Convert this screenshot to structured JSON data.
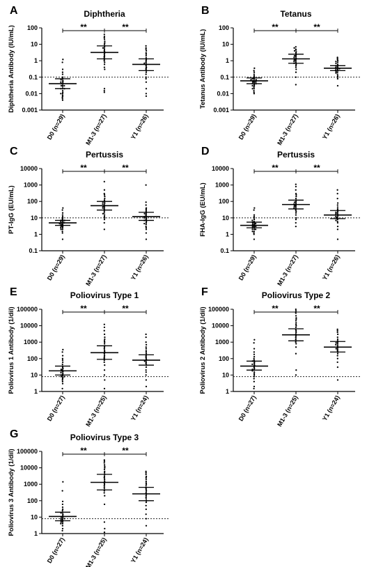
{
  "chart_data": [
    {
      "type": "scatter",
      "letter": "A",
      "title": "Diphtheria",
      "ylabel": "Diphtheria Antibody (IU/mL)",
      "scale": "log",
      "ylim": [
        0.001,
        100
      ],
      "ticks": [
        "0.001",
        "0.01",
        "0.1",
        "1",
        "10",
        "100"
      ],
      "categories": [
        "D0 (n=29)",
        "M1-3 (n=27)",
        "Y1 (n=26)"
      ],
      "threshold": 0.1,
      "significance": [
        "**",
        "**"
      ],
      "groups": [
        {
          "mean": 0.04,
          "ci": [
            0.02,
            0.08
          ],
          "points": [
            1.2,
            0.8,
            0.3,
            0.2,
            0.15,
            0.1,
            0.09,
            0.08,
            0.07,
            0.06,
            0.05,
            0.05,
            0.04,
            0.04,
            0.03,
            0.03,
            0.03,
            0.02,
            0.02,
            0.02,
            0.015,
            0.012,
            0.01,
            0.01,
            0.008,
            0.007,
            0.006,
            0.005,
            0.004
          ]
        },
        {
          "mean": 3.2,
          "ci": [
            1.3,
            8
          ],
          "points": [
            40,
            30,
            25,
            20,
            15,
            12,
            10,
            8,
            7,
            6,
            5,
            4,
            3.5,
            3,
            2.5,
            2,
            1.8,
            1.5,
            1.2,
            1,
            0.8,
            0.6,
            0.4,
            0.3,
            0.02,
            0.015,
            0.012
          ]
        },
        {
          "mean": 0.6,
          "ci": [
            0.25,
            1.3
          ],
          "points": [
            8,
            6,
            5,
            4,
            3,
            2.5,
            2,
            1.5,
            1.2,
            1,
            0.8,
            0.7,
            0.6,
            0.5,
            0.4,
            0.35,
            0.3,
            0.25,
            0.2,
            0.15,
            0.1,
            0.08,
            0.05,
            0.02,
            0.01,
            0.007
          ]
        }
      ]
    },
    {
      "type": "scatter",
      "letter": "B",
      "title": "Tetanus",
      "ylabel": "Tetanus Antibody (IU/mL)",
      "scale": "log",
      "ylim": [
        0.001,
        100
      ],
      "ticks": [
        "0.001",
        "0.01",
        "0.1",
        "1",
        "10",
        "100"
      ],
      "categories": [
        "D0 (n=29)",
        "M1-3 (n=27)",
        "Y1 (n=26)"
      ],
      "threshold": 0.1,
      "significance": [
        "**",
        "**"
      ],
      "groups": [
        {
          "mean": 0.06,
          "ci": [
            0.04,
            0.09
          ],
          "points": [
            0.35,
            0.25,
            0.2,
            0.15,
            0.12,
            0.1,
            0.09,
            0.08,
            0.08,
            0.07,
            0.07,
            0.06,
            0.06,
            0.06,
            0.05,
            0.05,
            0.05,
            0.04,
            0.04,
            0.04,
            0.035,
            0.03,
            0.03,
            0.025,
            0.02,
            0.02,
            0.015,
            0.012,
            0.01
          ]
        },
        {
          "mean": 1.3,
          "ci": [
            0.7,
            2.5
          ],
          "points": [
            7,
            6,
            5,
            4.5,
            4,
            3.5,
            3,
            2.5,
            2.2,
            2,
            1.8,
            1.6,
            1.4,
            1.3,
            1.2,
            1.1,
            1,
            0.9,
            0.8,
            0.7,
            0.6,
            0.5,
            0.4,
            0.3,
            0.2,
            0.1,
            0.035
          ]
        },
        {
          "mean": 0.35,
          "ci": [
            0.25,
            0.5
          ],
          "points": [
            1.6,
            1.4,
            1.2,
            1,
            0.9,
            0.8,
            0.7,
            0.6,
            0.55,
            0.5,
            0.45,
            0.4,
            0.38,
            0.35,
            0.33,
            0.3,
            0.28,
            0.25,
            0.22,
            0.2,
            0.18,
            0.15,
            0.12,
            0.1,
            0.08,
            0.03
          ]
        }
      ]
    },
    {
      "type": "scatter",
      "letter": "C",
      "title": "Pertussis",
      "ylabel": "PT-IgG (EU/mL)",
      "scale": "log",
      "ylim": [
        0.1,
        10000
      ],
      "ticks": [
        "0.1",
        "1",
        "10",
        "100",
        "1000",
        "10000"
      ],
      "categories": [
        "D0 (n=29)",
        "M1-3 (n=27)",
        "Y1 (n=26)"
      ],
      "threshold": 10,
      "significance": [
        "**",
        "**"
      ],
      "groups": [
        {
          "mean": 5,
          "ci": [
            3.5,
            7
          ],
          "points": [
            40,
            30,
            20,
            15,
            12,
            10,
            9,
            8,
            7,
            7,
            6,
            6,
            5,
            5,
            5,
            4.5,
            4,
            4,
            3.5,
            3.5,
            3,
            3,
            2.5,
            2.5,
            2,
            2,
            1.5,
            1.2,
            0.5
          ]
        },
        {
          "mean": 55,
          "ci": [
            30,
            100
          ],
          "points": [
            1600,
            500,
            300,
            250,
            200,
            150,
            120,
            100,
            90,
            80,
            70,
            60,
            55,
            50,
            45,
            40,
            35,
            30,
            25,
            20,
            18,
            15,
            12,
            10,
            8,
            5,
            2
          ]
        },
        {
          "mean": 12,
          "ci": [
            7,
            22
          ],
          "points": [
            1000,
            90,
            60,
            40,
            35,
            30,
            25,
            20,
            18,
            16,
            14,
            12,
            11,
            10,
            9,
            8,
            7,
            6,
            5,
            4.5,
            4,
            3,
            2.5,
            2,
            1.2,
            0.5
          ]
        }
      ]
    },
    {
      "type": "scatter",
      "letter": "D",
      "title": "Pertussis",
      "ylabel": "FHA-IgG (EU/mL)",
      "scale": "log",
      "ylim": [
        0.1,
        10000
      ],
      "ticks": [
        "0.1",
        "1",
        "10",
        "100",
        "1000",
        "10000"
      ],
      "categories": [
        "D0 (n=29)",
        "M1-3 (n=27)",
        "Y1 (n=26)"
      ],
      "threshold": 10,
      "significance": [
        "**",
        "**"
      ],
      "groups": [
        {
          "mean": 3.5,
          "ci": [
            2.5,
            5.5
          ],
          "points": [
            40,
            30,
            15,
            12,
            10,
            8,
            7,
            6,
            5.5,
            5,
            5,
            4.5,
            4,
            4,
            3.5,
            3.5,
            3,
            3,
            3,
            2.5,
            2.5,
            2,
            2,
            2,
            1.5,
            1.5,
            1.2,
            1,
            0.5
          ]
        },
        {
          "mean": 65,
          "ci": [
            35,
            120
          ],
          "points": [
            1100,
            800,
            500,
            300,
            250,
            200,
            150,
            120,
            100,
            90,
            80,
            70,
            65,
            60,
            55,
            50,
            45,
            40,
            35,
            30,
            25,
            20,
            15,
            10,
            8,
            5,
            3
          ]
        },
        {
          "mean": 15,
          "ci": [
            9,
            28
          ],
          "points": [
            500,
            300,
            150,
            80,
            60,
            45,
            35,
            30,
            25,
            22,
            20,
            18,
            16,
            15,
            14,
            12,
            11,
            10,
            9,
            8,
            7,
            6,
            5,
            3,
            2,
            0.5
          ]
        }
      ]
    },
    {
      "type": "scatter",
      "letter": "E",
      "title": "Poliovirus Type 1",
      "ylabel": "Poliovirus 1 Antibody (1/dil)",
      "scale": "log",
      "ylim": [
        1,
        100000
      ],
      "ticks": [
        "1",
        "10",
        "100",
        "1000",
        "10000",
        "100000"
      ],
      "categories": [
        "D0 (n=27)",
        "M1-3 (n=25)",
        "Y1 (n=24)"
      ],
      "threshold": 8,
      "significance": [
        "**",
        "**"
      ],
      "groups": [
        {
          "mean": 18,
          "ci": [
            10,
            35
          ],
          "points": [
            350,
            250,
            150,
            100,
            80,
            60,
            45,
            35,
            30,
            25,
            22,
            20,
            18,
            16,
            14,
            12,
            11,
            10,
            9,
            8,
            8,
            7,
            6,
            5,
            4,
            3,
            1.5
          ]
        },
        {
          "mean": 230,
          "ci": [
            90,
            600
          ],
          "points": [
            12000,
            8000,
            5000,
            3000,
            2000,
            1500,
            1200,
            1000,
            800,
            600,
            500,
            400,
            300,
            250,
            200,
            150,
            120,
            100,
            80,
            60,
            40,
            20,
            10,
            5,
            1.5
          ]
        },
        {
          "mean": 80,
          "ci": [
            40,
            170
          ],
          "points": [
            3000,
            2000,
            1000,
            700,
            500,
            400,
            300,
            250,
            200,
            160,
            130,
            110,
            90,
            80,
            70,
            60,
            50,
            40,
            30,
            20,
            15,
            10,
            5,
            2
          ]
        }
      ]
    },
    {
      "type": "scatter",
      "letter": "F",
      "title": "Poliovirus Type 2",
      "ylabel": "Poliovirus 2 Antibody (1/dil)",
      "scale": "log",
      "ylim": [
        1,
        100000
      ],
      "ticks": [
        "1",
        "10",
        "100",
        "1000",
        "10000",
        "100000"
      ],
      "categories": [
        "D0 (n=27)",
        "M1-3 (n=25)",
        "Y1 (n=24)"
      ],
      "threshold": 8,
      "significance": [
        "**",
        "**"
      ],
      "groups": [
        {
          "mean": 35,
          "ci": [
            20,
            70
          ],
          "points": [
            1400,
            900,
            400,
            250,
            180,
            130,
            100,
            80,
            70,
            60,
            50,
            45,
            40,
            35,
            30,
            25,
            22,
            20,
            18,
            15,
            12,
            10,
            8,
            6,
            4,
            2,
            1.5
          ]
        },
        {
          "mean": 2800,
          "ci": [
            1200,
            6500
          ],
          "points": [
            100000,
            80000,
            60000,
            40000,
            30000,
            25000,
            20000,
            15000,
            12000,
            10000,
            8000,
            6000,
            5000,
            4000,
            3000,
            2500,
            2000,
            1500,
            1200,
            1000,
            800,
            500,
            200,
            20,
            10
          ]
        },
        {
          "mean": 500,
          "ci": [
            250,
            1100
          ],
          "points": [
            6000,
            5000,
            4000,
            3000,
            2000,
            1500,
            1200,
            1000,
            900,
            800,
            700,
            600,
            500,
            450,
            400,
            350,
            300,
            250,
            200,
            150,
            100,
            60,
            30,
            5
          ]
        }
      ]
    },
    {
      "type": "scatter",
      "letter": "G",
      "title": "Poliovirus Type 3",
      "ylabel": "Poliovirus 3 Antibody (1/dil)",
      "scale": "log",
      "ylim": [
        1,
        100000
      ],
      "ticks": [
        "1",
        "10",
        "100",
        "1000",
        "10000",
        "100000"
      ],
      "categories": [
        "D0 (n=27)",
        "M1-3 (n=25)",
        "Y1 (n=24)"
      ],
      "threshold": 8,
      "significance": [
        "**",
        "**"
      ],
      "groups": [
        {
          "mean": 11,
          "ci": [
            6,
            20
          ],
          "points": [
            1400,
            400,
            90,
            60,
            40,
            30,
            25,
            20,
            18,
            15,
            12,
            11,
            10,
            9,
            8,
            8,
            7,
            7,
            6,
            6,
            5,
            5,
            4,
            4,
            3,
            2,
            1.5
          ]
        },
        {
          "mean": 1300,
          "ci": [
            450,
            4000
          ],
          "points": [
            30000,
            25000,
            20000,
            15000,
            12000,
            10000,
            8000,
            6000,
            5000,
            4000,
            3000,
            2500,
            2000,
            1500,
            1200,
            1000,
            800,
            600,
            400,
            300,
            200,
            60,
            5,
            2,
            1.2
          ]
        },
        {
          "mean": 260,
          "ci": [
            100,
            650
          ],
          "points": [
            6000,
            5000,
            4000,
            3000,
            2500,
            2000,
            1500,
            1200,
            1000,
            800,
            600,
            500,
            400,
            300,
            250,
            200,
            150,
            100,
            80,
            50,
            30,
            15,
            8,
            3
          ]
        }
      ]
    }
  ]
}
